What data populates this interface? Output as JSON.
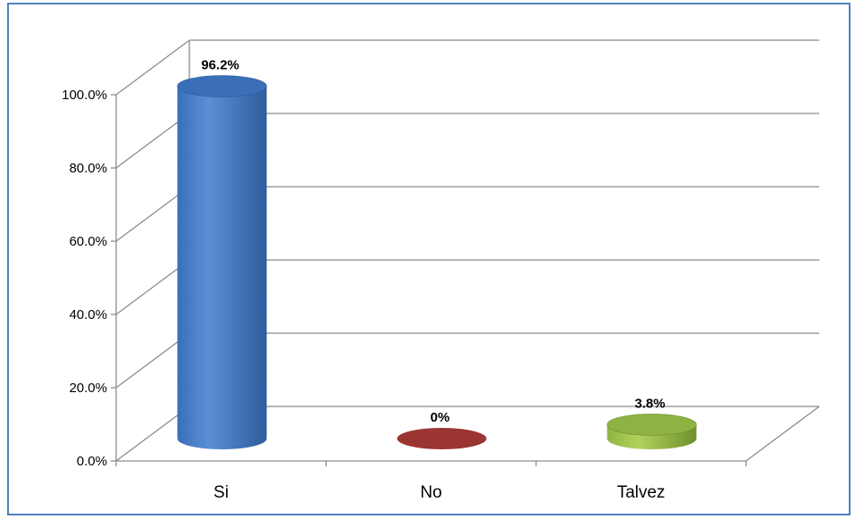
{
  "chart_data": {
    "type": "bar",
    "categories": [
      "Si",
      "No",
      "Talvez"
    ],
    "values": [
      96.2,
      0,
      3.8
    ],
    "data_labels": [
      "96.2%",
      "0%",
      "3.8%"
    ],
    "y_ticks": [
      "0.0%",
      "20.0%",
      "40.0%",
      "60.0%",
      "80.0%",
      "100.0%"
    ],
    "ylim": [
      0,
      100
    ],
    "grid": true,
    "legend": "none",
    "colors": {
      "Si": [
        "#2e5c9c",
        "#5b8fd6",
        "#3a6fb8"
      ],
      "No": [
        "#7a2622",
        "#b84a44",
        "#9b3532"
      ],
      "Talvez": [
        "#6f8f2e",
        "#b2d25e",
        "#8fb343"
      ],
      "frame": "#4f81bd",
      "grid": "#8c8c8c"
    }
  }
}
